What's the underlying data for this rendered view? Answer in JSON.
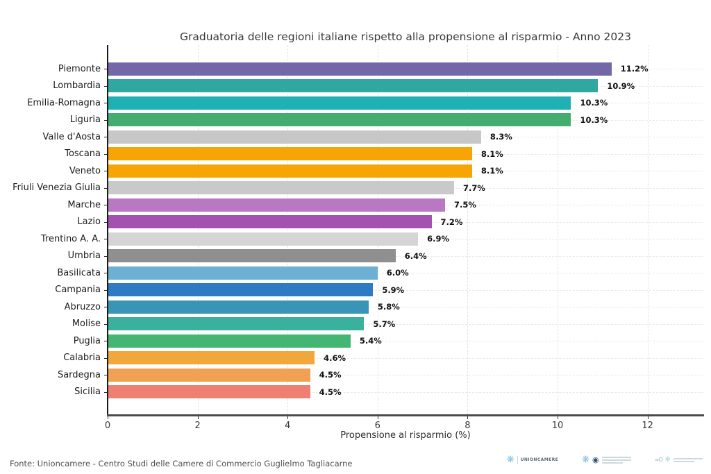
{
  "chart_data": {
    "type": "bar",
    "orientation": "horizontal",
    "title": "Graduatoria delle regioni italiane rispetto alla propensione al risparmio - Anno 2023",
    "xlabel": "Propensione al risparmio (%)",
    "ylabel": "",
    "xlim": [
      0,
      13.2
    ],
    "xticks": [
      0,
      2,
      4,
      6,
      8,
      10,
      12
    ],
    "grid": true,
    "categories": [
      "Piemonte",
      "Lombardia",
      "Emilia-Romagna",
      "Liguria",
      "Valle d'Aosta",
      "Toscana",
      "Veneto",
      "Friuli Venezia Giulia",
      "Marche",
      "Lazio",
      "Trentino A. A.",
      "Umbria",
      "Basilicata",
      "Campania",
      "Abruzzo",
      "Molise",
      "Puglia",
      "Calabria",
      "Sardegna",
      "Sicilia"
    ],
    "values": [
      11.2,
      10.9,
      10.3,
      10.3,
      8.3,
      8.1,
      8.1,
      7.7,
      7.5,
      7.2,
      6.9,
      6.4,
      6.0,
      5.9,
      5.8,
      5.7,
      5.4,
      4.6,
      4.5,
      4.5
    ],
    "value_labels": [
      "11.2%",
      "10.9%",
      "10.3%",
      "10.3%",
      "8.3%",
      "8.1%",
      "8.1%",
      "7.7%",
      "7.5%",
      "7.2%",
      "6.9%",
      "6.4%",
      "6.0%",
      "5.9%",
      "5.8%",
      "5.7%",
      "5.4%",
      "4.6%",
      "4.5%",
      "4.5%"
    ],
    "bar_colors": [
      "#7267a7",
      "#30a8a1",
      "#1fb0b4",
      "#44ac6e",
      "#c7c7c7",
      "#f6a504",
      "#f6a504",
      "#c9c9c9",
      "#b878c2",
      "#a551b1",
      "#d5d5d5",
      "#8f8f8f",
      "#6cb0d3",
      "#2e7ac5",
      "#3895b6",
      "#3ab19c",
      "#43b673",
      "#f2a73d",
      "#f0a153",
      "#ef7f71"
    ]
  },
  "footer": {
    "source": "Fonte: Unioncamere - Centro Studi delle Camere di Commercio Guglielmo Tagliacarne"
  },
  "logos": {
    "unioncamere_label": "UNIONCAMERE"
  },
  "style": {
    "grid_color": "#e3e3e3",
    "spine_color": "#1a1a1a",
    "title_color": "#3a3a3a",
    "value_label_color": "#111111"
  }
}
